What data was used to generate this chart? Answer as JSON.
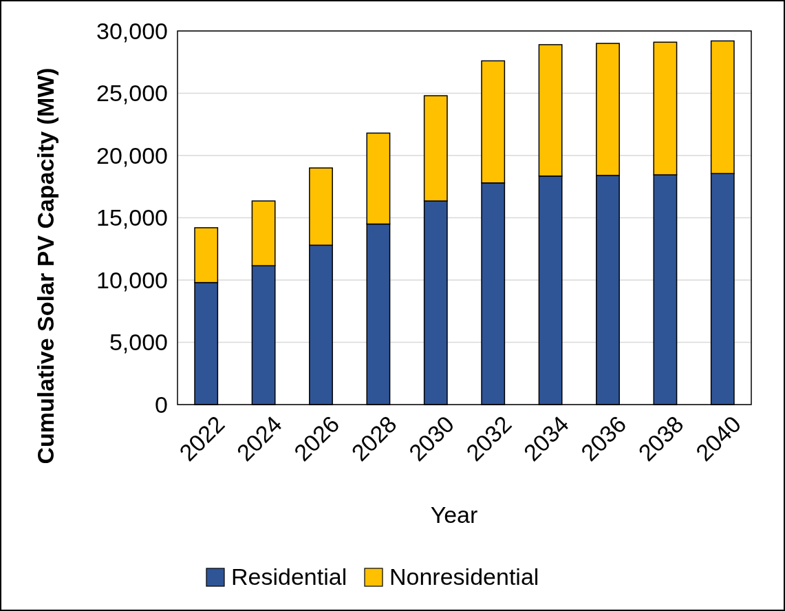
{
  "chart_data": {
    "type": "bar",
    "stacked": true,
    "xlabel": "Year",
    "ylabel": "Cumulative Solar PV Capacity (MW)",
    "categories": [
      "2022",
      "2024",
      "2026",
      "2028",
      "2030",
      "2032",
      "2034",
      "2036",
      "2038",
      "2040"
    ],
    "series": [
      {
        "name": "Residential",
        "color": "#2f5597",
        "values": [
          9800,
          11150,
          12800,
          14500,
          16350,
          17800,
          18350,
          18400,
          18450,
          18550
        ]
      },
      {
        "name": "Nonresidential",
        "color": "#ffc000",
        "values": [
          4400,
          5200,
          6200,
          7300,
          8450,
          9800,
          10550,
          10600,
          10650,
          10650
        ]
      }
    ],
    "ylim": [
      0,
      30000
    ],
    "yticks": [
      {
        "value": 0,
        "label": "0"
      },
      {
        "value": 5000,
        "label": "5,000"
      },
      {
        "value": 10000,
        "label": "10,000"
      },
      {
        "value": 15000,
        "label": "15,000"
      },
      {
        "value": 20000,
        "label": "20,000"
      },
      {
        "value": 25000,
        "label": "25,000"
      },
      {
        "value": 30000,
        "label": "30,000"
      }
    ],
    "grid": "y",
    "legend": "bottom"
  }
}
